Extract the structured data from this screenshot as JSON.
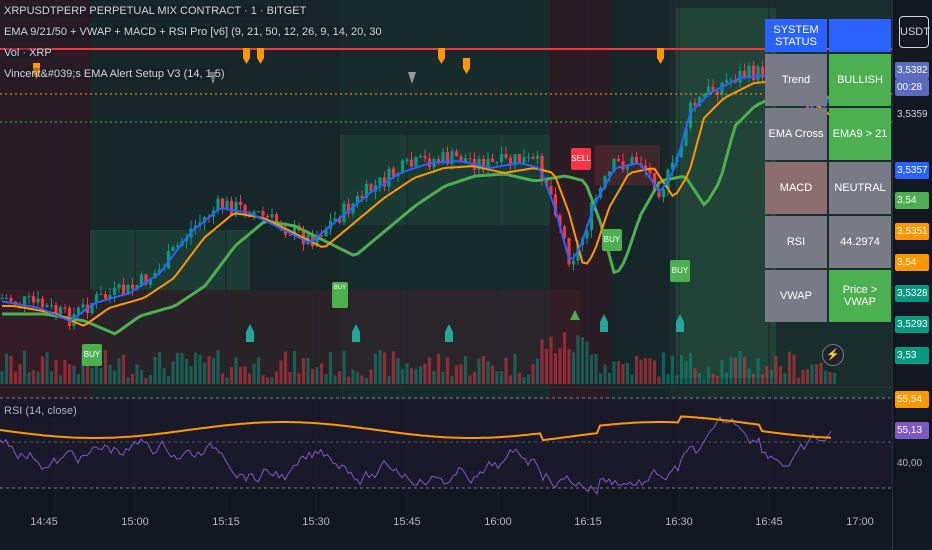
{
  "header": {
    "symbol": "XRPUSDTPERP PERPETUAL MIX CONTRACT · 1 · BITGET",
    "indicator1": "EMA 9/21/50 + VWAP + MACD + RSI Pro [v6] (9, 21, 50, 12, 26, 9, 14, 20, 30",
    "indicator2": "Vol · XRP",
    "indicator3": "Vincent&#039;s EMA Alert Setup V3 (14, 1.5)"
  },
  "rsi_pane": {
    "label": "RSI (14, close)",
    "levels": [
      "55,54",
      "55,13",
      "40,00"
    ]
  },
  "status_table": {
    "header_left": "SYSTEM STATUS",
    "header_right": "",
    "rows": [
      {
        "label": "Trend",
        "value": "BULLISH",
        "label_color": "#787b86",
        "value_color": "#4caf50"
      },
      {
        "label": "EMA Cross",
        "value": "EMA9 > 21",
        "label_color": "#787b86",
        "value_color": "#4caf50"
      },
      {
        "label": "MACD",
        "value": "NEUTRAL",
        "label_color": "#8d6e6e",
        "value_color": "#787b86"
      },
      {
        "label": "RSI",
        "value": "44.2974",
        "label_color": "#787b86",
        "value_color": "#787b86"
      },
      {
        "label": "VWAP",
        "value": "Price > VWAP",
        "label_color": "#787b86",
        "value_color": "#4caf50"
      }
    ],
    "header_left_color": "#2962ff",
    "header_right_color": "#2962ff"
  },
  "price_axis": {
    "currency": "USDT",
    "labels": [
      {
        "text": "3,5382",
        "color": "#5c6bc0"
      },
      {
        "text": "00:28",
        "color": "#5c6bc0"
      },
      {
        "text": "3,5359",
        "color": "#2a2e39"
      },
      {
        "text": "3,5357",
        "color": "#2962ff"
      },
      {
        "text": "3,54",
        "color": "#4caf50"
      },
      {
        "text": "3,5351",
        "color": "#ff9800"
      },
      {
        "text": "3,54",
        "color": "#ff9800"
      },
      {
        "text": "3,5328",
        "color": "#089981"
      },
      {
        "text": "3,5293",
        "color": "#089981"
      },
      {
        "text": "3,53",
        "color": "#089981"
      }
    ]
  },
  "time_axis": {
    "labels": [
      "14:45",
      "15:00",
      "15:15",
      "15:30",
      "15:45",
      "16:00",
      "16:15",
      "16:30",
      "16:45",
      "17:00"
    ]
  },
  "signals": {
    "buy": "BUY",
    "sell": "SELL"
  },
  "colors": {
    "background": "#131722",
    "up": "#089981",
    "down": "#f23645",
    "ema9": "#2962ff",
    "ema21": "#ff9800",
    "ema50": "#4caf50",
    "rsi": "#7e57c2",
    "rsi_ma": "#ff9800",
    "resistance": "#f23645"
  }
}
